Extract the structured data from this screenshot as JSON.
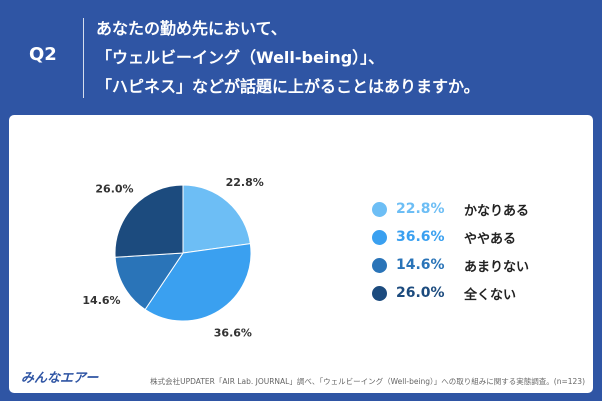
{
  "header": {
    "q_label": "Q2",
    "question_lines": [
      "あなたの勤め先において、",
      "「ウェルビーイング（Well-being）」、",
      "「ハピネス」などが話題に上がることはありますか。"
    ]
  },
  "chart_data": {
    "type": "pie",
    "title": "",
    "categories": [
      "かなりある",
      "ややある",
      "あまりない",
      "全くない"
    ],
    "values": [
      22.8,
      36.6,
      14.6,
      26.0
    ],
    "labels": [
      "22.8%",
      "36.6%",
      "14.6%",
      "26.0%"
    ],
    "colors": [
      "#6dbef5",
      "#3aa0f0",
      "#2a74b8",
      "#1c4b7e"
    ],
    "legend_position": "right"
  },
  "footer": {
    "logo": "みんなエアー",
    "source": "株式会社UPDATER「AIR Lab. JOURNAL」調べ、「ウェルビーイング（Well-being）」への取り組みに関する実態調査。(n=123)"
  }
}
